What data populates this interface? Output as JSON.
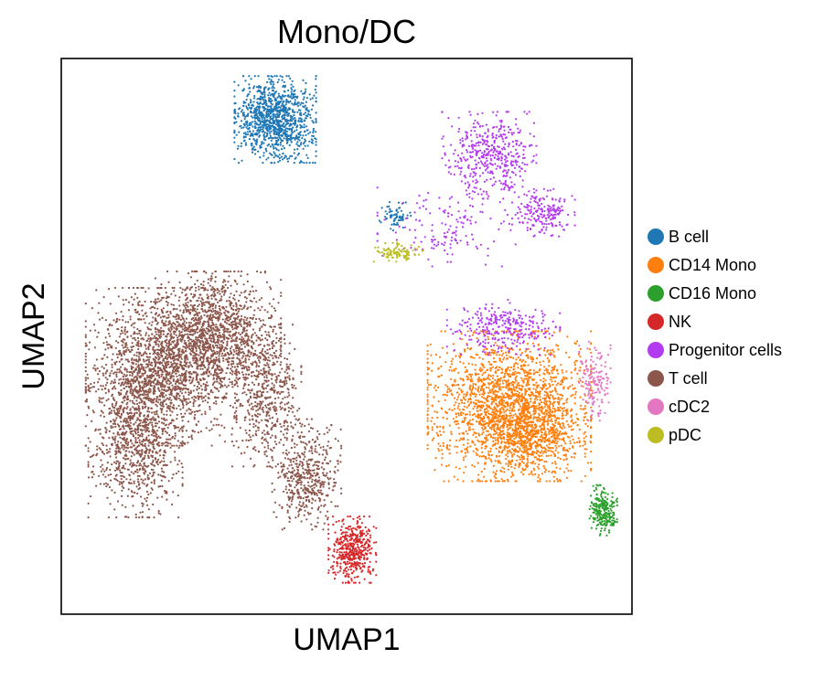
{
  "chart_data": {
    "type": "scatter",
    "title": "Mono/DC",
    "xlabel": "UMAP1",
    "ylabel": "UMAP2",
    "xticks": false,
    "yticks": false,
    "grid": false,
    "legend": "right",
    "series": [
      {
        "name": "B cell",
        "color": "#1f77b4",
        "clusters": [
          {
            "cx": 7.5,
            "cy": 8.3,
            "sx": 0.65,
            "sy": 0.55,
            "n": 1100
          },
          {
            "cx": 11.7,
            "cy": 5.6,
            "sx": 0.25,
            "sy": 0.18,
            "n": 70
          }
        ]
      },
      {
        "name": "CD14 Mono",
        "color": "#ff7f0e",
        "clusters": [
          {
            "cx": 15.7,
            "cy": 0.3,
            "sx": 1.3,
            "sy": 0.95,
            "n": 2100
          },
          {
            "cx": 16.6,
            "cy": -0.5,
            "sx": 0.8,
            "sy": 0.5,
            "n": 500
          }
        ]
      },
      {
        "name": "CD16 Mono",
        "color": "#2ca02c",
        "clusters": [
          {
            "cx": 19.0,
            "cy": -2.6,
            "sx": 0.22,
            "sy": 0.32,
            "n": 240
          }
        ]
      },
      {
        "name": "NK",
        "color": "#d62728",
        "clusters": [
          {
            "cx": 10.2,
            "cy": -3.7,
            "sx": 0.38,
            "sy": 0.42,
            "n": 450
          }
        ]
      },
      {
        "name": "Progenitor cells",
        "color": "#b43cf0",
        "clusters": [
          {
            "cx": 15.0,
            "cy": 7.3,
            "sx": 0.75,
            "sy": 0.55,
            "n": 450
          },
          {
            "cx": 16.9,
            "cy": 5.7,
            "sx": 0.5,
            "sy": 0.3,
            "n": 200
          },
          {
            "cx": 15.5,
            "cy": 2.5,
            "sx": 0.9,
            "sy": 0.35,
            "n": 300
          },
          {
            "cx": 13.5,
            "cy": 5.3,
            "sx": 1.1,
            "sy": 0.5,
            "n": 150
          }
        ]
      },
      {
        "name": "T cell",
        "color": "#8c564b",
        "clusters": [
          {
            "cx": 3.5,
            "cy": 1.4,
            "sx": 1.2,
            "sy": 1.0,
            "n": 1800
          },
          {
            "cx": 5.5,
            "cy": 2.3,
            "sx": 1.0,
            "sy": 0.8,
            "n": 1200
          },
          {
            "cx": 2.6,
            "cy": -0.6,
            "sx": 0.75,
            "sy": 1.0,
            "n": 900
          },
          {
            "cx": 7.2,
            "cy": 0.6,
            "sx": 0.55,
            "sy": 0.9,
            "n": 500
          },
          {
            "cx": 8.6,
            "cy": -1.6,
            "sx": 0.55,
            "sy": 0.7,
            "n": 500
          }
        ]
      },
      {
        "name": "cDC2",
        "color": "#e377c2",
        "clusters": [
          {
            "cx": 18.7,
            "cy": 1.0,
            "sx": 0.25,
            "sy": 0.5,
            "n": 160
          }
        ]
      },
      {
        "name": "pDC",
        "color": "#bcbd22",
        "clusters": [
          {
            "cx": 11.8,
            "cy": 4.6,
            "sx": 0.42,
            "sy": 0.12,
            "n": 100
          }
        ]
      }
    ]
  }
}
